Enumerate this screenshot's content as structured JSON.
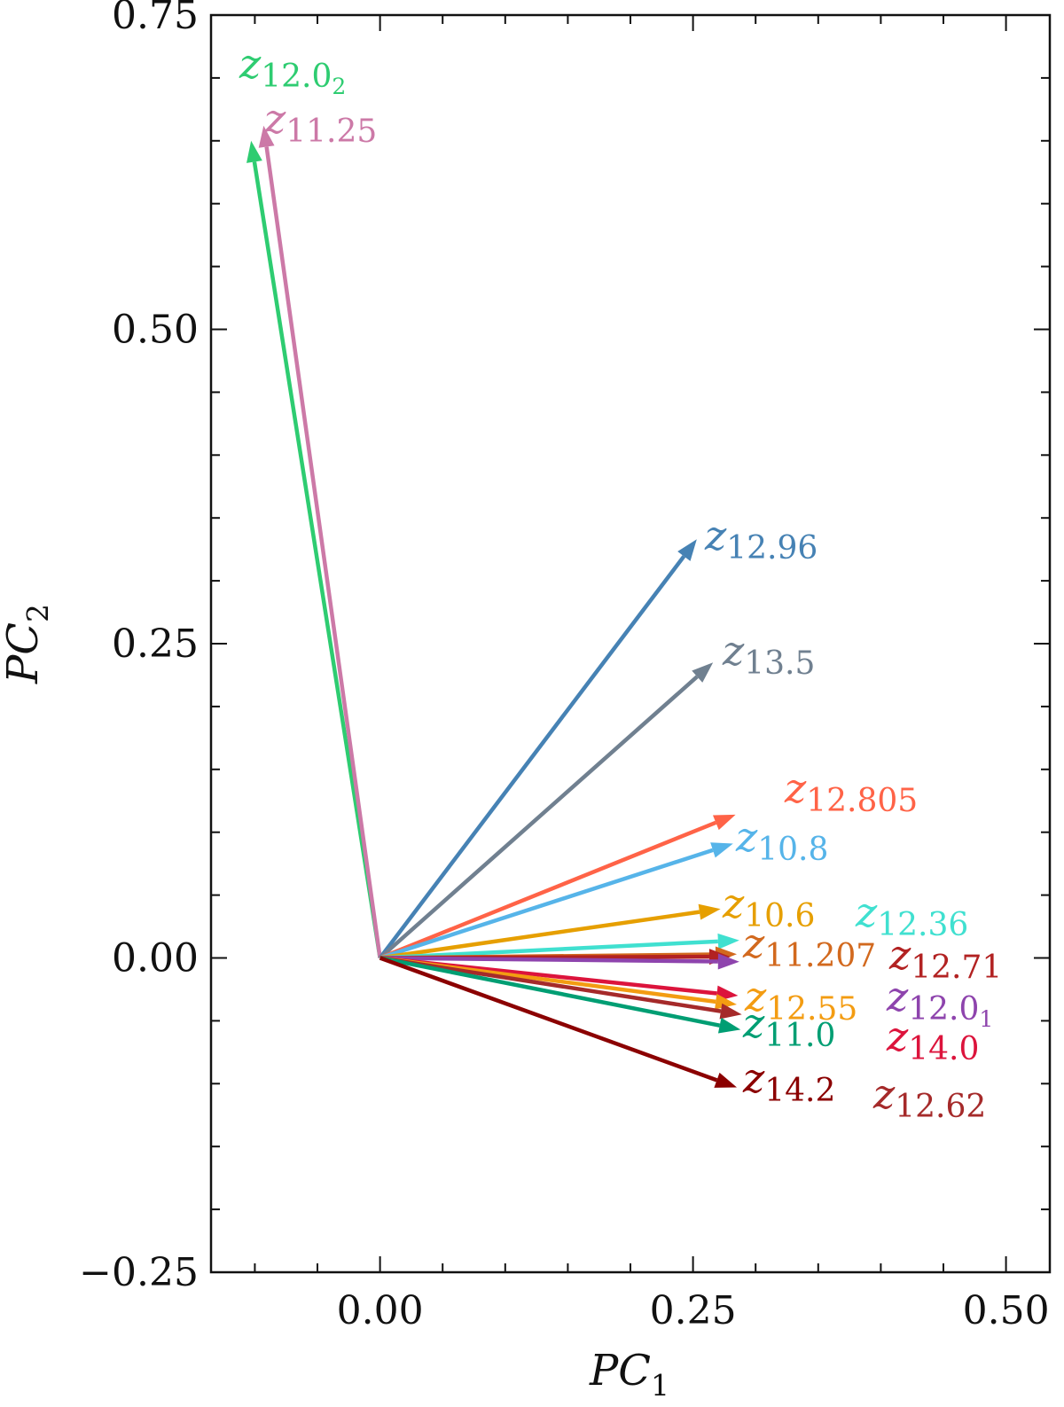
{
  "chart_data": {
    "type": "biplot",
    "xlabel": "PC",
    "xlabel_sub": "1",
    "ylabel": "PC",
    "ylabel_sub": "2",
    "xlim": [
      -0.135,
      0.535
    ],
    "ylim": [
      -0.25,
      0.75
    ],
    "xticks": [
      0.0,
      0.25,
      0.5
    ],
    "xtick_labels": [
      "0.00",
      "0.25",
      "0.50"
    ],
    "yticks": [
      -0.25,
      0.0,
      0.25,
      0.5,
      0.75
    ],
    "ytick_labels": [
      "−0.25",
      "0.00",
      "0.25",
      "0.50",
      "0.75"
    ],
    "grid": false,
    "origin": [
      0,
      0
    ],
    "vectors": [
      {
        "label_var": "z",
        "label_num": "12.0",
        "label_sub2": "2",
        "x": -0.103,
        "y": 0.65,
        "color": "#2ecc71"
      },
      {
        "label_var": "z",
        "label_num": "11.25",
        "label_sub2": "",
        "x": -0.093,
        "y": 0.662,
        "color": "#cc79a7"
      },
      {
        "label_var": "z",
        "label_num": "12.96",
        "label_sub2": "",
        "x": 0.253,
        "y": 0.333,
        "color": "#4682b4"
      },
      {
        "label_var": "z",
        "label_num": "13.5",
        "label_sub2": "",
        "x": 0.266,
        "y": 0.235,
        "color": "#708090"
      },
      {
        "label_var": "z",
        "label_num": "12.805",
        "label_sub2": "",
        "x": 0.284,
        "y": 0.114,
        "color": "#ff6347"
      },
      {
        "label_var": "z",
        "label_num": "10.8",
        "label_sub2": "",
        "x": 0.282,
        "y": 0.091,
        "color": "#56b4e9"
      },
      {
        "label_var": "z",
        "label_num": "10.6",
        "label_sub2": "",
        "x": 0.272,
        "y": 0.039,
        "color": "#e69f00"
      },
      {
        "label_var": "z",
        "label_num": "12.36",
        "label_sub2": "",
        "x": 0.287,
        "y": 0.014,
        "color": "#40e0d0"
      },
      {
        "label_var": "z",
        "label_num": "11.207",
        "label_sub2": "",
        "x": 0.285,
        "y": 0.003,
        "color": "#d2691e"
      },
      {
        "label_var": "z",
        "label_num": "12.71",
        "label_sub2": "",
        "x": 0.28,
        "y": 0.001,
        "color": "#b22222"
      },
      {
        "label_var": "z",
        "label_num": "12.0",
        "label_sub2": "1",
        "x": 0.287,
        "y": -0.003,
        "color": "#8e44ad"
      },
      {
        "label_var": "z",
        "label_num": "14.0",
        "label_sub2": "",
        "x": 0.286,
        "y": -0.03,
        "color": "#dc143c"
      },
      {
        "label_var": "z",
        "label_num": "12.55",
        "label_sub2": "",
        "x": 0.285,
        "y": -0.037,
        "color": "#f39c12"
      },
      {
        "label_var": "z",
        "label_num": "12.62",
        "label_sub2": "",
        "x": 0.289,
        "y": -0.045,
        "color": "#a52a2a"
      },
      {
        "label_var": "z",
        "label_num": "11.0",
        "label_sub2": "",
        "x": 0.288,
        "y": -0.057,
        "color": "#009e73"
      },
      {
        "label_var": "z",
        "label_num": "14.2",
        "label_sub2": "",
        "x": 0.285,
        "y": -0.103,
        "color": "#8b0000"
      }
    ]
  }
}
